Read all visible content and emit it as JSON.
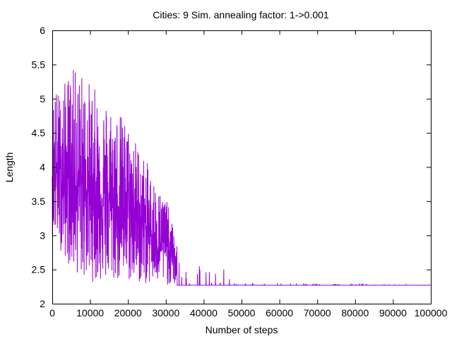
{
  "chart_data": {
    "type": "line",
    "title": "Cities: 9 Sim. annealing factor: 1->0.001",
    "xlabel": "Number of steps",
    "ylabel": "Length",
    "xlim": [
      0,
      100000
    ],
    "ylim": [
      2,
      6
    ],
    "xticks": [
      0,
      10000,
      20000,
      30000,
      40000,
      50000,
      60000,
      70000,
      80000,
      90000,
      100000
    ],
    "xtick_labels": [
      "0",
      "10000",
      "20000",
      "30000",
      "40000",
      "50000",
      "60000",
      "70000",
      "80000",
      "90000",
      "100000"
    ],
    "yticks": [
      2,
      2.5,
      3,
      3.5,
      4,
      4.5,
      5,
      5.5,
      6
    ],
    "ytick_labels": [
      "2",
      "2.5",
      "3",
      "3.5",
      "4",
      "4.5",
      "5",
      "5.5",
      "6"
    ],
    "grid": false,
    "legend": "none",
    "series": [
      {
        "color": "#9400d3",
        "final_value": 2.27,
        "envelope": {
          "x": [
            0,
            2000,
            5000,
            8000,
            12000,
            16000,
            20000,
            24000,
            28000,
            30000,
            32000,
            34000,
            38000,
            42000,
            46000,
            50000,
            60000,
            70000,
            80000,
            100000
          ],
          "y_max": [
            5.25,
            5.1,
            5.45,
            5.4,
            5.1,
            4.95,
            4.65,
            4.2,
            3.7,
            3.6,
            3.1,
            2.6,
            2.6,
            2.55,
            2.5,
            2.3,
            2.3,
            2.3,
            2.3,
            2.27
          ],
          "y_min": [
            3.0,
            2.8,
            2.5,
            2.35,
            2.3,
            2.3,
            2.3,
            2.28,
            2.27,
            2.27,
            2.27,
            2.27,
            2.27,
            2.27,
            2.27,
            2.27,
            2.27,
            2.27,
            2.27,
            2.27
          ]
        }
      }
    ]
  }
}
